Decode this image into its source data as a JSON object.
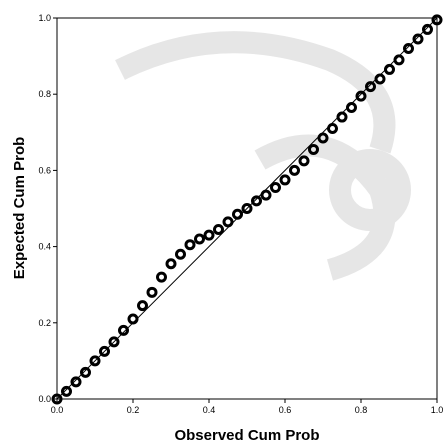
{
  "chart_data": {
    "type": "scatter",
    "x_label": "Observed Cum Prob",
    "y_label": "Expected Cum Prob",
    "x": [
      0,
      0.025,
      0.05,
      0.075,
      0.1,
      0.125,
      0.15,
      0.175,
      0.2,
      0.225,
      0.25,
      0.275,
      0.3,
      0.325,
      0.35,
      0.375,
      0.4,
      0.425,
      0.45,
      0.475,
      0.5,
      0.525,
      0.55,
      0.575,
      0.6,
      0.625,
      0.65,
      0.675,
      0.7,
      0.725,
      0.75,
      0.775,
      0.8,
      0.825,
      0.85,
      0.875,
      0.9,
      0.925,
      0.95,
      0.975,
      1.0
    ],
    "values": [
      0,
      0.02,
      0.045,
      0.07,
      0.1,
      0.125,
      0.15,
      0.18,
      0.21,
      0.245,
      0.28,
      0.32,
      0.355,
      0.38,
      0.405,
      0.42,
      0.43,
      0.445,
      0.465,
      0.485,
      0.5,
      0.52,
      0.535,
      0.555,
      0.575,
      0.6,
      0.625,
      0.655,
      0.685,
      0.71,
      0.74,
      0.765,
      0.795,
      0.82,
      0.84,
      0.865,
      0.89,
      0.92,
      0.945,
      0.97,
      0.995
    ],
    "color": "#000000",
    "xlim": [
      0,
      1
    ],
    "ylim": [
      0,
      1
    ],
    "xticks": [
      {
        "value": 0,
        "label": "0.0"
      },
      0.2,
      0.4,
      0.6,
      0.8,
      {
        "value": 1,
        "label": "1.0"
      }
    ],
    "yticks": [
      {
        "value": 0,
        "label": "0.0"
      },
      0.2,
      0.4,
      0.6,
      0.8,
      {
        "value": 1,
        "label": "1.0"
      }
    ]
  }
}
